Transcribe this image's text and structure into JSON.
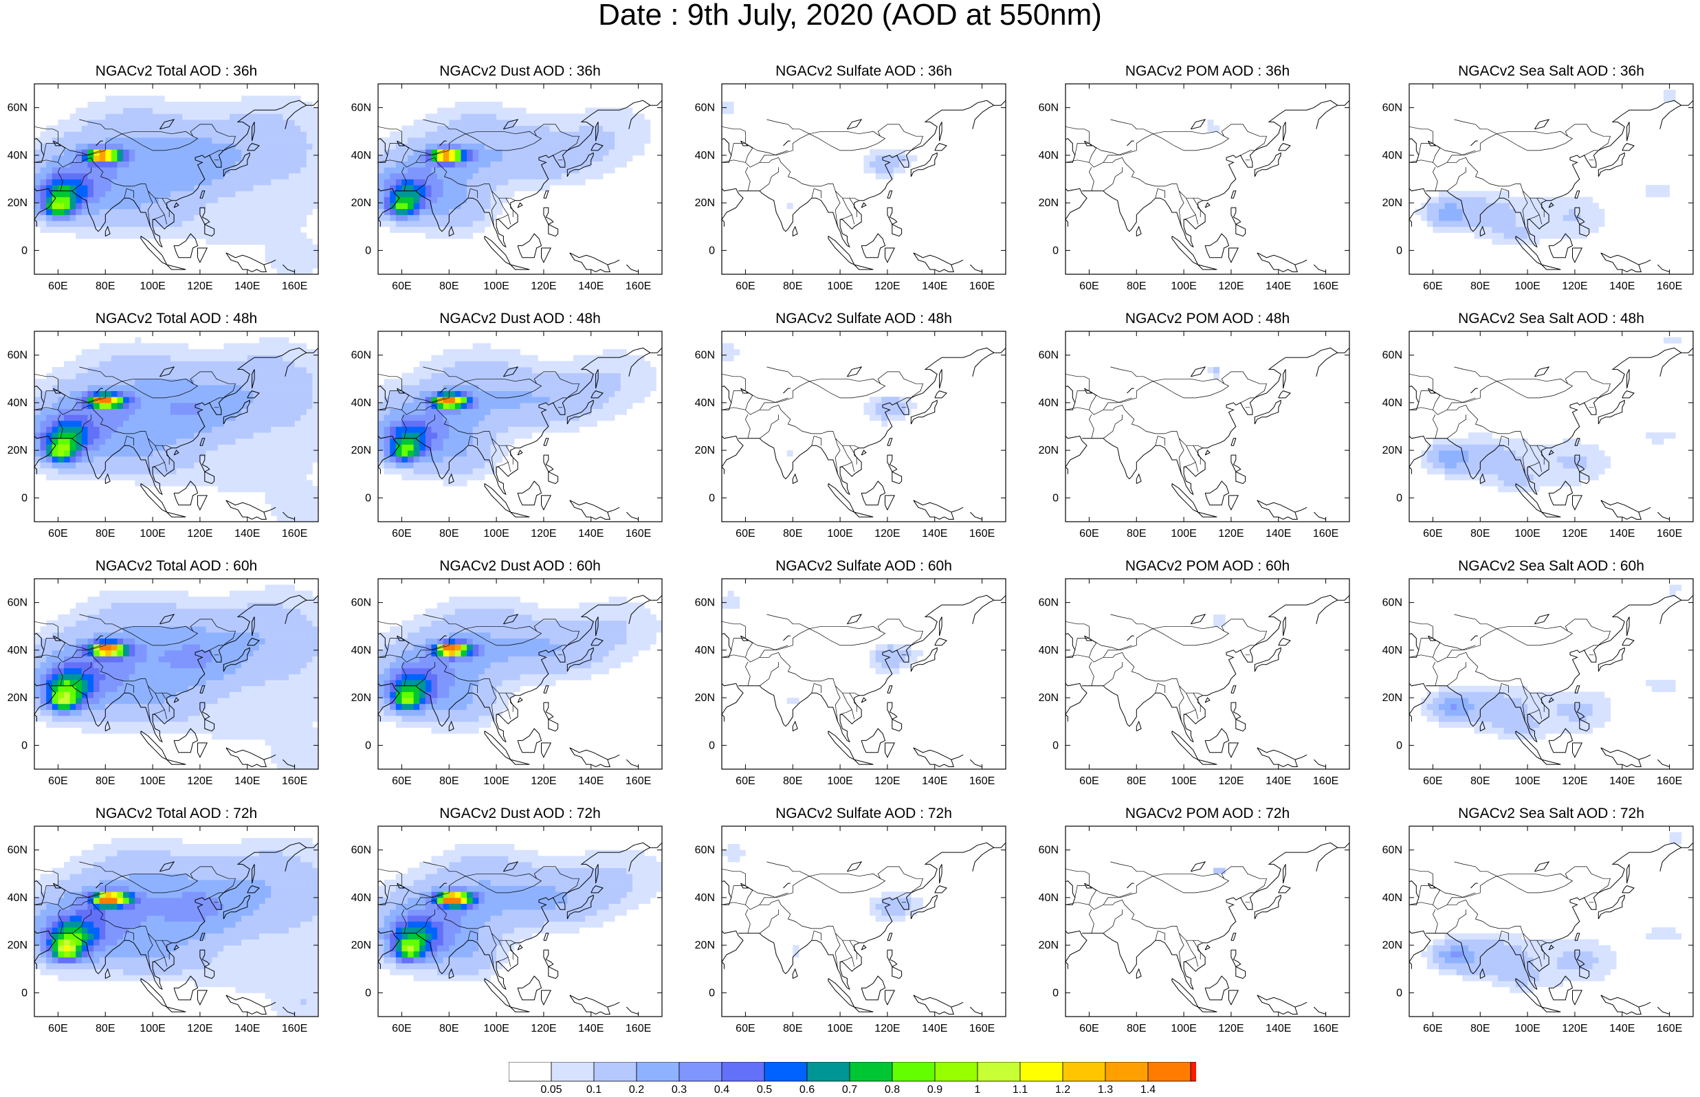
{
  "title": "Date : 9th July, 2020 (AOD at 550nm)",
  "species": [
    "Total",
    "Dust",
    "Sulfate",
    "POM",
    "Sea Salt"
  ],
  "lead_times": [
    "36h",
    "48h",
    "60h",
    "72h"
  ],
  "panels": [
    {
      "title": "NGACv2 Total AOD : 36h",
      "species": "Total",
      "lead": "36h"
    },
    {
      "title": "NGACv2 Dust AOD : 36h",
      "species": "Dust",
      "lead": "36h"
    },
    {
      "title": "NGACv2 Sulfate AOD : 36h",
      "species": "Sulfate",
      "lead": "36h"
    },
    {
      "title": "NGACv2 POM AOD : 36h",
      "species": "POM",
      "lead": "36h"
    },
    {
      "title": "NGACv2 Sea Salt AOD : 36h",
      "species": "Sea Salt",
      "lead": "36h"
    },
    {
      "title": "NGACv2 Total AOD : 48h",
      "species": "Total",
      "lead": "48h"
    },
    {
      "title": "NGACv2 Dust AOD : 48h",
      "species": "Dust",
      "lead": "48h"
    },
    {
      "title": "NGACv2 Sulfate AOD : 48h",
      "species": "Sulfate",
      "lead": "48h"
    },
    {
      "title": "NGACv2 POM AOD : 48h",
      "species": "POM",
      "lead": "48h"
    },
    {
      "title": "NGACv2 Sea Salt AOD : 48h",
      "species": "Sea Salt",
      "lead": "48h"
    },
    {
      "title": "NGACv2 Total AOD : 60h",
      "species": "Total",
      "lead": "60h"
    },
    {
      "title": "NGACv2 Dust AOD : 60h",
      "species": "Dust",
      "lead": "60h"
    },
    {
      "title": "NGACv2 Sulfate AOD : 60h",
      "species": "Sulfate",
      "lead": "60h"
    },
    {
      "title": "NGACv2 POM AOD : 60h",
      "species": "POM",
      "lead": "60h"
    },
    {
      "title": "NGACv2 Sea Salt AOD : 60h",
      "species": "Sea Salt",
      "lead": "60h"
    },
    {
      "title": "NGACv2 Total AOD : 72h",
      "species": "Total",
      "lead": "72h"
    },
    {
      "title": "NGACv2 Dust AOD : 72h",
      "species": "Dust",
      "lead": "72h"
    },
    {
      "title": "NGACv2 Sulfate AOD : 72h",
      "species": "Sulfate",
      "lead": "72h"
    },
    {
      "title": "NGACv2 POM AOD : 72h",
      "species": "POM",
      "lead": "72h"
    },
    {
      "title": "NGACv2 Sea Salt  AOD : 72h",
      "species": "Sea Salt",
      "lead": "72h"
    }
  ],
  "map": {
    "lon_range": [
      50,
      170
    ],
    "lat_range": [
      -10,
      70
    ],
    "lon_ticks": [
      60,
      80,
      100,
      120,
      140,
      160
    ],
    "lon_tick_labels": [
      "60E",
      "80E",
      "100E",
      "120E",
      "140E",
      "160E"
    ],
    "lat_ticks": [
      0,
      20,
      40,
      60
    ],
    "lat_tick_labels": [
      "0",
      "20N",
      "40N",
      "60N"
    ]
  },
  "colorbar": {
    "labels": [
      "0.05",
      "0.1",
      "0.2",
      "0.3",
      "0.4",
      "0.5",
      "0.6",
      "0.7",
      "0.8",
      "0.9",
      "1",
      "1.1",
      "1.2",
      "1.3",
      "1.4"
    ],
    "colors": [
      "#ffffff",
      "#d6e2ff",
      "#b5c9ff",
      "#8eb2ff",
      "#7f96ff",
      "#6370f8",
      "#0063ff",
      "#009696",
      "#00c633",
      "#63ff00",
      "#96ff00",
      "#c6ff33",
      "#ffff00",
      "#ffc600",
      "#ffa000",
      "#ff7c00",
      "#ff1900"
    ]
  }
}
